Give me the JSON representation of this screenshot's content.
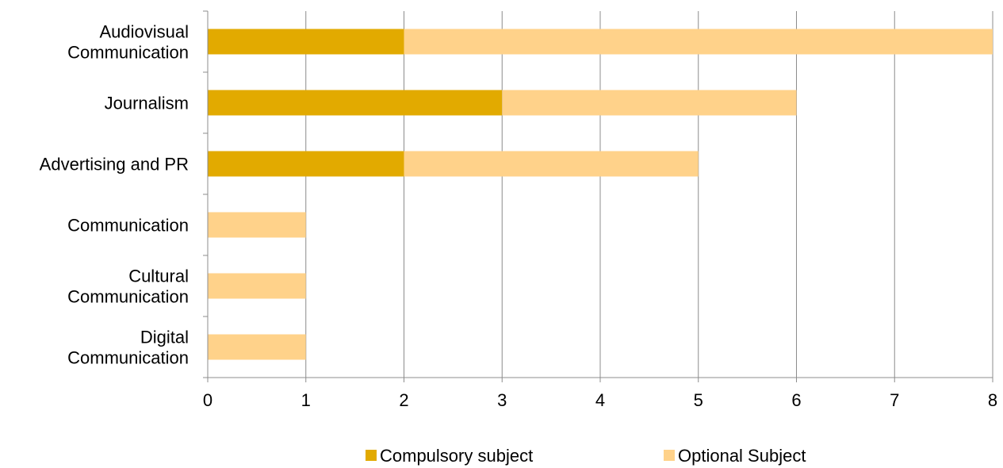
{
  "chart_data": {
    "type": "bar",
    "orientation": "horizontal",
    "stacked": true,
    "categories": [
      [
        "Audiovisual",
        "Communication"
      ],
      [
        "Journalism"
      ],
      [
        "Advertising and PR"
      ],
      [
        "Communication"
      ],
      [
        "Cultural",
        "Communication"
      ],
      [
        "Digital",
        "Communication"
      ]
    ],
    "series": [
      {
        "name": "Compulsory subject",
        "color": "#E2AA00",
        "values": [
          2,
          3,
          2,
          0,
          0,
          0
        ]
      },
      {
        "name": "Optional Subject",
        "color": "#FFD28A",
        "values": [
          6,
          3,
          3,
          1,
          1,
          1
        ]
      }
    ],
    "xlim": [
      0,
      8
    ],
    "xticks": [
      "0",
      "1",
      "2",
      "3",
      "4",
      "5",
      "6",
      "7",
      "8"
    ],
    "grid": "vertical",
    "legend": "bottom"
  }
}
